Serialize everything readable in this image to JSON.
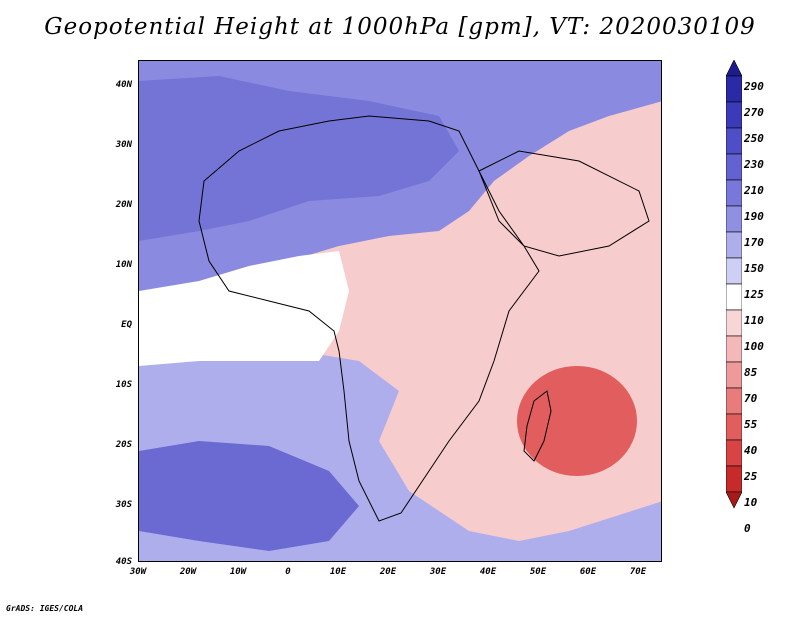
{
  "title": "Geopotential Height at 1000hPa [gpm], VT: 2020030109",
  "credit": "GrADS: IGES/COLA",
  "lat_labels": [
    "40N",
    "30N",
    "20N",
    "10N",
    "EQ",
    "10S",
    "20S",
    "30S",
    "40S"
  ],
  "lon_labels": [
    "30W",
    "20W",
    "10W",
    "0",
    "10E",
    "20E",
    "30E",
    "40E",
    "50E",
    "60E",
    "70E"
  ],
  "colorbar": {
    "labels": [
      "290",
      "270",
      "250",
      "230",
      "210",
      "190",
      "170",
      "150",
      "125",
      "110",
      "100",
      "85",
      "70",
      "55",
      "40",
      "25",
      "10",
      "0"
    ],
    "colors": [
      "#1c1c8c",
      "#2a2aa6",
      "#3b3bba",
      "#4e4ec6",
      "#6262d0",
      "#7878da",
      "#9090e2",
      "#aeaeec",
      "#cfcff5",
      "#ffffff",
      "#f9d6d6",
      "#f4b8b8",
      "#ee9a9a",
      "#e87c7c",
      "#e25e5e",
      "#d84444",
      "#c62a2a",
      "#a81a1a"
    ]
  },
  "field": {
    "background": "#f7cccc",
    "regions": [
      {
        "name": "sahara-high",
        "color": "#8a8ae0"
      },
      {
        "name": "atlantic-high-north",
        "color": "#7474d6"
      },
      {
        "name": "atlantic-south-low",
        "color": "#aeaeec"
      },
      {
        "name": "south-atlantic-high",
        "color": "#6a6ad2"
      },
      {
        "name": "equatorial-band",
        "color": "#ffffff"
      },
      {
        "name": "mascarene-low",
        "color": "#e25e5e"
      }
    ]
  }
}
